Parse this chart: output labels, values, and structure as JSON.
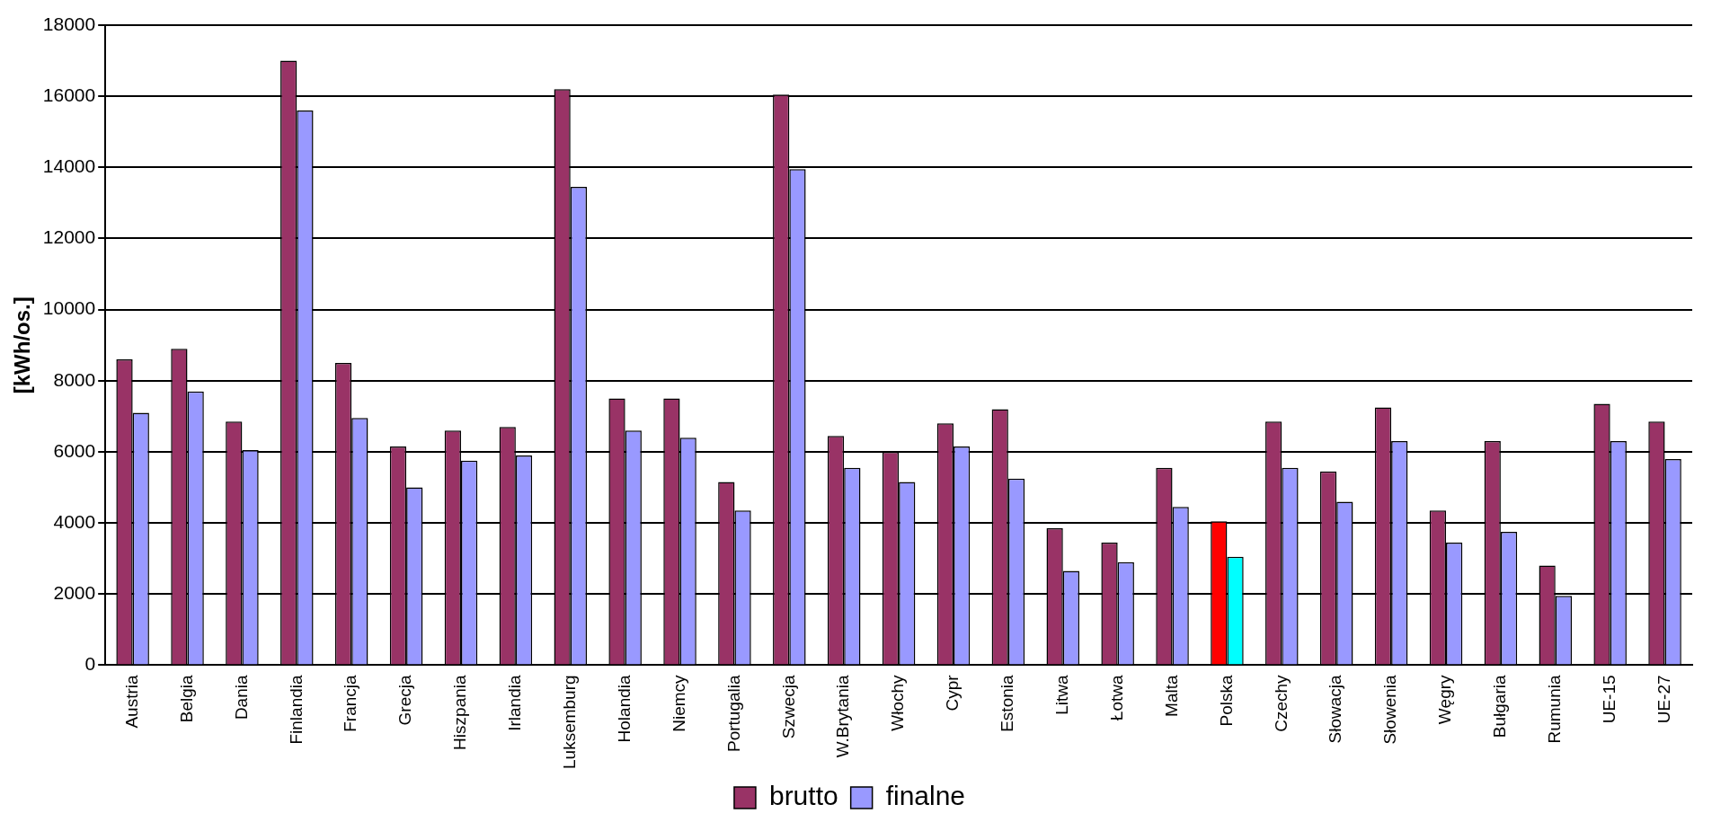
{
  "chart_data": {
    "type": "bar",
    "ylabel": "[kWh/os.]",
    "categories": [
      "Austria",
      "Belgia",
      "Dania",
      "Finlandia",
      "Francja",
      "Grecja",
      "Hiszpania",
      "Irlandia",
      "Luksemburg",
      "Holandia",
      "Niemcy",
      "Portugalia",
      "Szwecja",
      "W.Brytania",
      "Włochy",
      "Cypr",
      "Estonia",
      "Litwa",
      "Łotwa",
      "Malta",
      "Polska",
      "Czechy",
      "Słowacja",
      "Słowenia",
      "Węgry",
      "Bułgaria",
      "Rumunia",
      "UE-15",
      "UE-27"
    ],
    "series": [
      {
        "name": "brutto",
        "color": "#993366",
        "colors": [
          "#993366",
          "#993366",
          "#993366",
          "#993366",
          "#993366",
          "#993366",
          "#993366",
          "#993366",
          "#993366",
          "#993366",
          "#993366",
          "#993366",
          "#993366",
          "#993366",
          "#993366",
          "#993366",
          "#993366",
          "#993366",
          "#993366",
          "#993366",
          "#ff0000",
          "#993366",
          "#993366",
          "#993366",
          "#993366",
          "#993366",
          "#993366",
          "#993366",
          "#993366"
        ],
        "values": [
          8600,
          8900,
          6850,
          17000,
          8500,
          6150,
          6600,
          6700,
          16200,
          7500,
          7500,
          5150,
          16050,
          6450,
          6000,
          6800,
          7200,
          3850,
          3450,
          5550,
          4050,
          6850,
          5450,
          7250,
          4350,
          6300,
          2800,
          7350,
          6850
        ]
      },
      {
        "name": "finalne",
        "color": "#9999ff",
        "colors": [
          "#9999ff",
          "#9999ff",
          "#9999ff",
          "#9999ff",
          "#9999ff",
          "#9999ff",
          "#9999ff",
          "#9999ff",
          "#9999ff",
          "#9999ff",
          "#9999ff",
          "#9999ff",
          "#9999ff",
          "#9999ff",
          "#9999ff",
          "#9999ff",
          "#9999ff",
          "#9999ff",
          "#9999ff",
          "#9999ff",
          "#00ffff",
          "#9999ff",
          "#9999ff",
          "#9999ff",
          "#9999ff",
          "#9999ff",
          "#9999ff",
          "#9999ff",
          "#9999ff"
        ],
        "values": [
          7100,
          7700,
          6050,
          15600,
          6950,
          5000,
          5750,
          5900,
          13450,
          6600,
          6400,
          4350,
          13950,
          5550,
          5150,
          6150,
          5250,
          2650,
          2900,
          4450,
          3050,
          5550,
          4600,
          6300,
          3450,
          3750,
          1950,
          6300,
          5800
        ]
      }
    ],
    "ylim": [
      0,
      18000
    ],
    "yticks": [
      0,
      2000,
      4000,
      6000,
      8000,
      10000,
      12000,
      14000,
      16000,
      18000
    ],
    "grid": "y",
    "legend": "bottom"
  }
}
